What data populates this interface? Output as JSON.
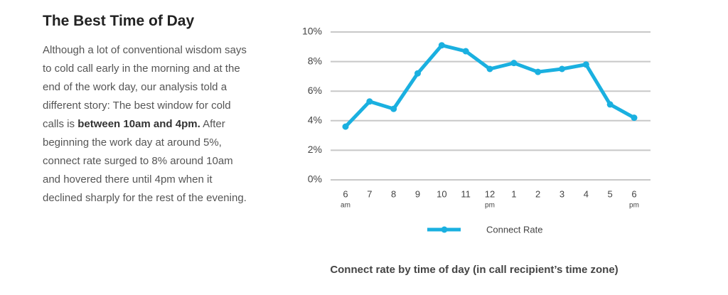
{
  "heading": "The Best Time of Day",
  "paragraph": {
    "before": "Although a lot of conventional wisdom says to cold call early in the morning and at the end of the work day, our analysis told a different story: The best window for cold calls is ",
    "bold": "between 10am and 4pm.",
    "after": " After beginning the work day at around 5%, connect rate surged to 8% around 10am and hovered there until 4pm when it declined sharply for the rest of the evening."
  },
  "chart_data": {
    "type": "line",
    "categories": [
      "6",
      "7",
      "8",
      "9",
      "10",
      "11",
      "12",
      "1",
      "2",
      "3",
      "4",
      "5",
      "6"
    ],
    "category_sublabels": [
      "am",
      null,
      null,
      null,
      null,
      null,
      "pm",
      null,
      null,
      null,
      null,
      null,
      "pm"
    ],
    "series": [
      {
        "name": "Connect Rate",
        "color": "#1ab0e0",
        "values": [
          3.6,
          5.3,
          4.8,
          7.2,
          9.1,
          8.7,
          7.5,
          7.9,
          7.3,
          7.5,
          7.8,
          5.1,
          4.2
        ]
      }
    ],
    "ylim": [
      0,
      10
    ],
    "yticks": [
      {
        "value": 0,
        "label": "0%"
      },
      {
        "value": 2,
        "label": "2%"
      },
      {
        "value": 4,
        "label": "4%"
      },
      {
        "value": 6,
        "label": "6%"
      },
      {
        "value": 8,
        "label": "8%"
      },
      {
        "value": 10,
        "label": "10%"
      }
    ],
    "grid": true,
    "caption": "Connect rate by time of day (in call recipient’s time zone)"
  }
}
